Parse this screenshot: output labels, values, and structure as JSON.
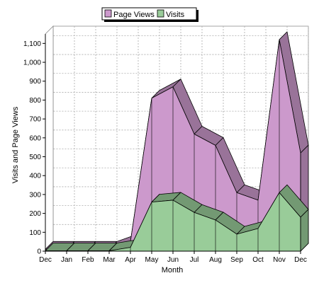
{
  "chart_data": {
    "type": "area",
    "stacked": false,
    "style": "3d",
    "categories": [
      "Dec",
      "Jan",
      "Feb",
      "Mar",
      "Apr",
      "May",
      "Jun",
      "Jul",
      "Aug",
      "Sep",
      "Oct",
      "Nov",
      "Dec"
    ],
    "series": [
      {
        "name": "Page Views",
        "color": "#cc99cc",
        "values": [
          10,
          10,
          10,
          10,
          50,
          810,
          870,
          620,
          560,
          310,
          270,
          1120,
          520
        ]
      },
      {
        "name": "Visits",
        "color": "#99cc99",
        "values": [
          2,
          2,
          2,
          2,
          20,
          260,
          270,
          205,
          165,
          90,
          120,
          310,
          180
        ]
      }
    ],
    "xlabel": "Month",
    "ylabel": "Visits and Page Views",
    "ylim": [
      0,
      1150
    ],
    "yticks": [
      "0",
      "100",
      "200",
      "300",
      "400",
      "500",
      "600",
      "700",
      "800",
      "900",
      "1,000",
      "1,100"
    ],
    "grid": true,
    "legend": "top-center"
  }
}
